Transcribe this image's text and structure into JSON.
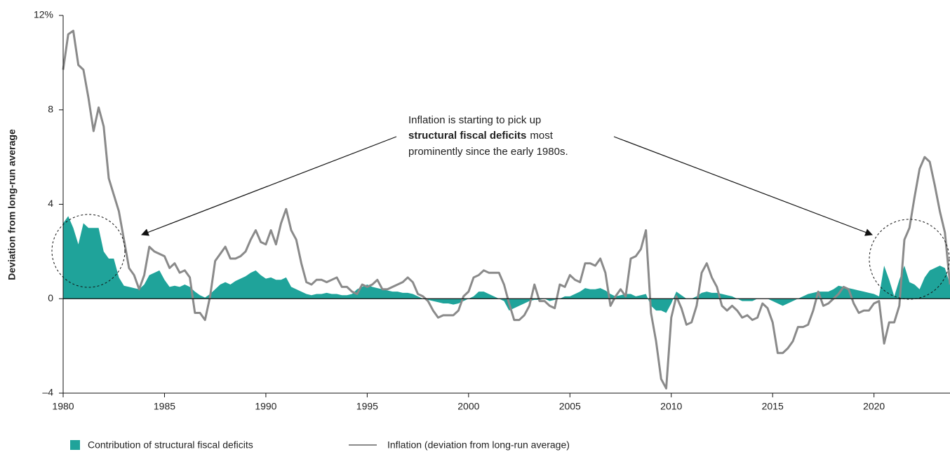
{
  "chart_data": {
    "type": "area_line",
    "y_axis_label": "Deviation from long-run average",
    "annotation": {
      "line1": "Inflation is starting to pick up",
      "bold": "structural fiscal deficits",
      "line2_rest": "most",
      "line3": "prominently since the early 1980s."
    },
    "xlim": [
      1980,
      2023.75
    ],
    "ylim": [
      -4,
      12
    ],
    "xticks": [
      1980,
      1985,
      1990,
      1995,
      2000,
      2005,
      2010,
      2015,
      2020
    ],
    "yticks": [
      {
        "value": -4,
        "label": "–4"
      },
      0,
      4,
      8,
      {
        "value": 12,
        "label": "12%"
      }
    ],
    "x": [
      1980,
      1980.25,
      1980.5,
      1980.75,
      1981,
      1981.25,
      1981.5,
      1981.75,
      1982,
      1982.25,
      1982.5,
      1982.75,
      1983,
      1983.25,
      1983.5,
      1983.75,
      1984,
      1984.25,
      1984.5,
      1984.75,
      1985,
      1985.25,
      1985.5,
      1985.75,
      1986,
      1986.25,
      1986.5,
      1986.75,
      1987,
      1987.25,
      1987.5,
      1987.75,
      1988,
      1988.25,
      1988.5,
      1988.75,
      1989,
      1989.25,
      1989.5,
      1989.75,
      1990,
      1990.25,
      1990.5,
      1990.75,
      1991,
      1991.25,
      1991.5,
      1991.75,
      1992,
      1992.25,
      1992.5,
      1992.75,
      1993,
      1993.25,
      1993.5,
      1993.75,
      1994,
      1994.25,
      1994.5,
      1994.75,
      1995,
      1995.25,
      1995.5,
      1995.75,
      1996,
      1996.25,
      1996.5,
      1996.75,
      1997,
      1997.25,
      1997.5,
      1997.75,
      1998,
      1998.25,
      1998.5,
      1998.75,
      1999,
      1999.25,
      1999.5,
      1999.75,
      2000,
      2000.25,
      2000.5,
      2000.75,
      2001,
      2001.25,
      2001.5,
      2001.75,
      2002,
      2002.25,
      2002.5,
      2002.75,
      2003,
      2003.25,
      2003.5,
      2003.75,
      2004,
      2004.25,
      2004.5,
      2004.75,
      2005,
      2005.25,
      2005.5,
      2005.75,
      2006,
      2006.25,
      2006.5,
      2006.75,
      2007,
      2007.25,
      2007.5,
      2007.75,
      2008,
      2008.25,
      2008.5,
      2008.75,
      2009,
      2009.25,
      2009.5,
      2009.75,
      2010,
      2010.25,
      2010.5,
      2010.75,
      2011,
      2011.25,
      2011.5,
      2011.75,
      2012,
      2012.25,
      2012.5,
      2012.75,
      2013,
      2013.25,
      2013.5,
      2013.75,
      2014,
      2014.25,
      2014.5,
      2014.75,
      2015,
      2015.25,
      2015.5,
      2015.75,
      2016,
      2016.25,
      2016.5,
      2016.75,
      2017,
      2017.25,
      2017.5,
      2017.75,
      2018,
      2018.25,
      2018.5,
      2018.75,
      2019,
      2019.25,
      2019.5,
      2019.75,
      2020,
      2020.25,
      2020.5,
      2020.75,
      2021,
      2021.25,
      2021.5,
      2021.75,
      2022,
      2022.25,
      2022.5,
      2022.75,
      2023,
      2023.25,
      2023.5,
      2023.75
    ],
    "series": [
      {
        "name": "Contribution of structural fiscal deficits",
        "color": "#1fa39a",
        "kind": "area",
        "values": [
          3.2,
          3.5,
          3.0,
          2.3,
          3.2,
          3.0,
          3.0,
          3.0,
          2.0,
          1.7,
          1.7,
          0.9,
          0.55,
          0.5,
          0.45,
          0.4,
          0.6,
          1.0,
          1.1,
          1.2,
          0.8,
          0.5,
          0.55,
          0.5,
          0.6,
          0.5,
          0.3,
          0.15,
          0.05,
          0.2,
          0.4,
          0.6,
          0.7,
          0.6,
          0.75,
          0.85,
          0.95,
          1.1,
          1.2,
          1.0,
          0.85,
          0.9,
          0.8,
          0.8,
          0.9,
          0.5,
          0.4,
          0.3,
          0.2,
          0.15,
          0.2,
          0.2,
          0.25,
          0.2,
          0.2,
          0.15,
          0.15,
          0.2,
          0.4,
          0.5,
          0.6,
          0.5,
          0.45,
          0.4,
          0.35,
          0.3,
          0.3,
          0.25,
          0.25,
          0.2,
          0.1,
          0.0,
          -0.05,
          -0.1,
          -0.15,
          -0.2,
          -0.2,
          -0.25,
          -0.2,
          -0.1,
          0.0,
          0.1,
          0.3,
          0.3,
          0.2,
          0.1,
          0.0,
          -0.1,
          -0.5,
          -0.4,
          -0.3,
          -0.2,
          -0.1,
          -0.05,
          -0.05,
          0.0,
          -0.1,
          -0.05,
          0.0,
          0.1,
          0.1,
          0.2,
          0.3,
          0.45,
          0.4,
          0.4,
          0.45,
          0.35,
          0.2,
          0.1,
          0.15,
          0.2,
          0.2,
          0.1,
          0.15,
          0.2,
          -0.3,
          -0.5,
          -0.5,
          -0.6,
          -0.2,
          0.3,
          0.15,
          0.0,
          0.0,
          0.1,
          0.25,
          0.3,
          0.25,
          0.25,
          0.2,
          0.15,
          0.1,
          0.0,
          -0.1,
          -0.1,
          -0.1,
          0.0,
          0.0,
          0.0,
          -0.1,
          -0.2,
          -0.3,
          -0.2,
          -0.1,
          0.0,
          0.1,
          0.2,
          0.25,
          0.3,
          0.3,
          0.3,
          0.4,
          0.55,
          0.5,
          0.45,
          0.4,
          0.35,
          0.3,
          0.25,
          0.2,
          0.1,
          1.4,
          0.8,
          0.1,
          0.8,
          1.4,
          0.7,
          0.6,
          0.4,
          0.9,
          1.2,
          1.3,
          1.4,
          1.3,
          0.6
        ]
      },
      {
        "name": "Inflation (deviation from long-run average)",
        "color": "#8a8a8a",
        "kind": "line",
        "values": [
          9.7,
          11.2,
          11.35,
          9.9,
          9.7,
          8.5,
          7.1,
          8.1,
          7.3,
          5.1,
          4.4,
          3.7,
          2.5,
          1.3,
          1.0,
          0.4,
          1.0,
          2.2,
          2.0,
          1.9,
          1.8,
          1.3,
          1.5,
          1.1,
          1.2,
          0.9,
          -0.6,
          -0.6,
          -0.9,
          0.1,
          1.6,
          1.9,
          2.2,
          1.7,
          1.7,
          1.8,
          2.0,
          2.5,
          2.9,
          2.4,
          2.3,
          2.9,
          2.3,
          3.2,
          3.8,
          2.9,
          2.5,
          1.5,
          0.7,
          0.6,
          0.8,
          0.8,
          0.7,
          0.8,
          0.9,
          0.5,
          0.5,
          0.3,
          0.2,
          0.6,
          0.5,
          0.6,
          0.8,
          0.4,
          0.4,
          0.5,
          0.6,
          0.7,
          0.9,
          0.7,
          0.2,
          0.1,
          -0.1,
          -0.5,
          -0.8,
          -0.7,
          -0.7,
          -0.7,
          -0.5,
          0.1,
          0.3,
          0.9,
          1.0,
          1.2,
          1.1,
          1.1,
          1.1,
          0.6,
          -0.2,
          -0.9,
          -0.9,
          -0.7,
          -0.3,
          0.6,
          -0.1,
          -0.1,
          -0.3,
          -0.4,
          0.6,
          0.5,
          1.0,
          0.8,
          0.7,
          1.5,
          1.5,
          1.4,
          1.7,
          1.1,
          -0.3,
          0.1,
          0.4,
          0.1,
          1.7,
          1.8,
          2.1,
          2.9,
          -0.6,
          -1.8,
          -3.4,
          -3.8,
          -0.8,
          0.1,
          -0.4,
          -1.1,
          -1.0,
          -0.3,
          1.1,
          1.5,
          0.9,
          0.5,
          -0.3,
          -0.5,
          -0.3,
          -0.5,
          -0.8,
          -0.7,
          -0.9,
          -0.8,
          -0.2,
          -0.4,
          -1.0,
          -2.3,
          -2.3,
          -2.1,
          -1.8,
          -1.2,
          -1.2,
          -1.1,
          -0.5,
          0.3,
          -0.3,
          -0.2,
          0.0,
          0.2,
          0.5,
          0.4,
          -0.2,
          -0.6,
          -0.5,
          -0.5,
          -0.2,
          -0.1,
          -1.9,
          -1.0,
          -1.0,
          -0.3,
          2.5,
          3.0,
          4.3,
          5.5,
          6.0,
          5.8,
          4.8,
          3.7,
          2.8,
          0.6
        ]
      }
    ]
  }
}
